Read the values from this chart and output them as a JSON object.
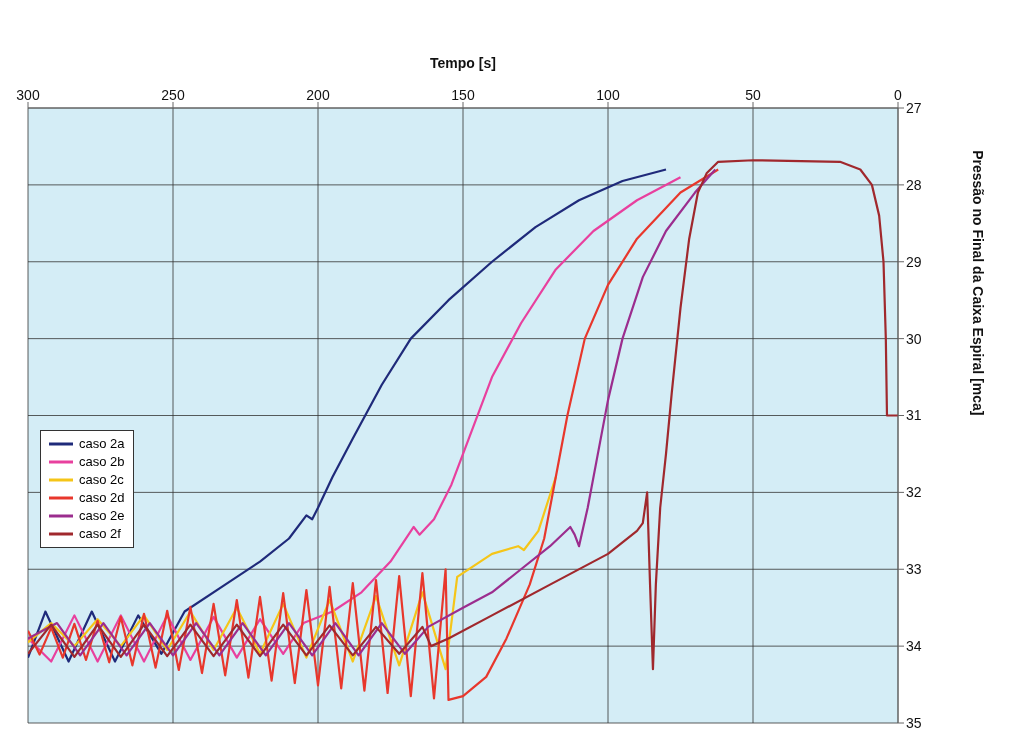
{
  "chart_data": {
    "type": "line",
    "xlabel": "Tempo [s]",
    "ylabel": "Pressão no Final da Caixa Espiral [mca]",
    "xlim": [
      300,
      0
    ],
    "xticks": [
      0,
      50,
      100,
      150,
      200,
      250,
      300
    ],
    "ylim": [
      35,
      27
    ],
    "yticks": [
      27,
      28,
      29,
      30,
      31,
      32,
      33,
      34,
      35
    ],
    "grid": true,
    "legend": "bottom left",
    "marker": "none",
    "series": [
      {
        "name": "caso 2a",
        "color": "#1f2a7a",
        "x": [
          80,
          95,
          110,
          125,
          140,
          155,
          168,
          178,
          188,
          195,
          200,
          202,
          204,
          210,
          220,
          232,
          246,
          254,
          262,
          270,
          278,
          286,
          294,
          300
        ],
        "values": [
          27.8,
          27.95,
          28.2,
          28.55,
          29.0,
          29.5,
          30.0,
          30.6,
          31.3,
          31.8,
          32.2,
          32.35,
          32.3,
          32.6,
          32.9,
          33.2,
          33.55,
          34.1,
          33.6,
          34.2,
          33.55,
          34.2,
          33.55,
          34.15
        ]
      },
      {
        "name": "caso 2b",
        "color": "#e8409e",
        "x": [
          75,
          90,
          105,
          118,
          130,
          140,
          148,
          154,
          160,
          165,
          167,
          175,
          185,
          195,
          205,
          212,
          220,
          228,
          236,
          244,
          252,
          260,
          268,
          276,
          284,
          292,
          300
        ],
        "values": [
          27.9,
          28.2,
          28.6,
          29.1,
          29.8,
          30.5,
          31.3,
          31.9,
          32.35,
          32.55,
          32.45,
          32.9,
          33.3,
          33.55,
          33.7,
          34.1,
          33.65,
          34.15,
          33.62,
          34.18,
          33.6,
          34.2,
          33.6,
          34.2,
          33.6,
          34.2,
          33.9
        ]
      },
      {
        "name": "caso 2c",
        "color": "#f5c518",
        "x": [
          118,
          124,
          129,
          131,
          140,
          152,
          156,
          164,
          172,
          180,
          188,
          196,
          204,
          212,
          220,
          228,
          236,
          244,
          252,
          260,
          268,
          276,
          284,
          292,
          300
        ],
        "values": [
          31.8,
          32.5,
          32.75,
          32.7,
          32.8,
          33.1,
          34.3,
          33.3,
          34.25,
          33.35,
          34.2,
          33.4,
          34.15,
          33.45,
          34.1,
          33.5,
          34.05,
          33.55,
          34.05,
          33.6,
          34.0,
          33.65,
          34.0,
          33.7,
          33.95
        ]
      },
      {
        "name": "caso 2d",
        "color": "#e8372c",
        "x": [
          62,
          75,
          90,
          100,
          108,
          114,
          118,
          122,
          127,
          135,
          142,
          150,
          155,
          156,
          160,
          164,
          168,
          172,
          176,
          180,
          184,
          188,
          192,
          196,
          200,
          204,
          208,
          212,
          216,
          220,
          224,
          228,
          232,
          236,
          240,
          244,
          248,
          252,
          256,
          260,
          264,
          268,
          272,
          276,
          280,
          284,
          288,
          292,
          296,
          300
        ],
        "values": [
          27.8,
          28.1,
          28.7,
          29.3,
          30.0,
          31.0,
          31.8,
          32.6,
          33.2,
          33.9,
          34.4,
          34.65,
          34.7,
          33.0,
          34.68,
          33.05,
          34.65,
          33.09,
          34.61,
          33.14,
          34.58,
          33.18,
          34.55,
          33.23,
          34.51,
          33.27,
          34.48,
          33.31,
          34.45,
          33.36,
          34.41,
          33.4,
          34.38,
          33.45,
          34.35,
          33.49,
          34.31,
          33.54,
          34.28,
          33.58,
          34.25,
          33.62,
          34.21,
          33.67,
          34.18,
          33.71,
          34.15,
          33.76,
          34.11,
          33.8
        ]
      },
      {
        "name": "caso 2e",
        "color": "#9b2d8e",
        "x": [
          63,
          70,
          80,
          88,
          95,
          100,
          104,
          107,
          110,
          111.5,
          113,
          120,
          130,
          140,
          150,
          162,
          170,
          178,
          186,
          194,
          202,
          210,
          218,
          226,
          234,
          242,
          250,
          258,
          266,
          274,
          282,
          290,
          300
        ],
        "values": [
          27.8,
          28.1,
          28.6,
          29.2,
          30.0,
          30.8,
          31.6,
          32.2,
          32.7,
          32.55,
          32.45,
          32.7,
          33.0,
          33.3,
          33.5,
          33.75,
          34.1,
          33.7,
          34.12,
          33.7,
          34.12,
          33.7,
          34.12,
          33.7,
          34.12,
          33.7,
          34.12,
          33.7,
          34.12,
          33.7,
          34.12,
          33.7,
          33.9
        ]
      },
      {
        "name": "caso 2f",
        "color": "#a0282d",
        "x": [
          0,
          3.8,
          4.2,
          5,
          6.5,
          9,
          13,
          20,
          50,
          62,
          66,
          69,
          72,
          75,
          78,
          80,
          82,
          83.5,
          84.5,
          85.5,
          86.5,
          88,
          90,
          100,
          120,
          140,
          155,
          161,
          164,
          172,
          180,
          188,
          196,
          204,
          212,
          220,
          228,
          236,
          244,
          252,
          260,
          268,
          276,
          284,
          292,
          300
        ],
        "values": [
          31,
          31,
          30,
          29,
          28.4,
          28,
          27.8,
          27.7,
          27.68,
          27.7,
          27.85,
          28.1,
          28.7,
          29.6,
          30.7,
          31.5,
          32.2,
          33.2,
          34.3,
          33.2,
          32.0,
          32.4,
          32.5,
          32.8,
          33.2,
          33.6,
          33.9,
          34.0,
          33.75,
          34.1,
          33.75,
          34.12,
          33.73,
          34.12,
          33.72,
          34.13,
          33.72,
          34.13,
          33.72,
          34.13,
          33.72,
          34.14,
          33.72,
          34.14,
          33.72,
          34.1
        ]
      }
    ]
  }
}
